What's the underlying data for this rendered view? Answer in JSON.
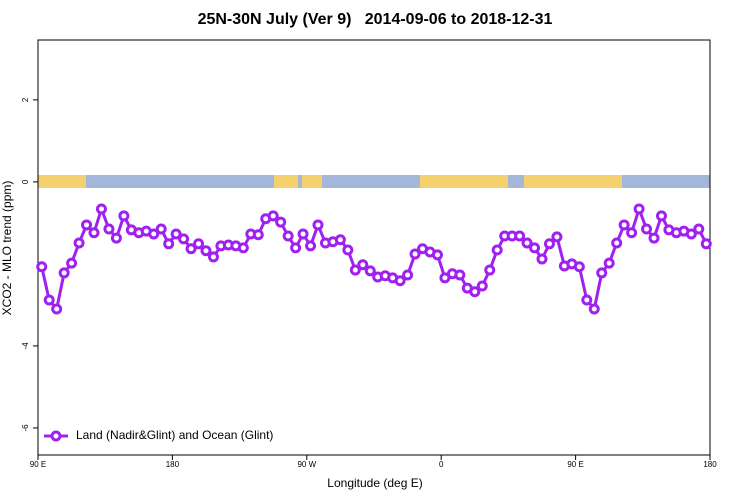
{
  "chart_data": {
    "type": "line",
    "title": "25N-30N July (Ver 9)   2014-09-06 to 2018-12-31",
    "x_label": "Longitude (deg E)",
    "y_label": "XCO2 - MLO trend (ppm)",
    "xlim": [
      90,
      540
    ],
    "ylim": [
      -6.66,
      3.46
    ],
    "xticks": [
      {
        "value": 90,
        "label": "90 E"
      },
      180,
      {
        "value": 270,
        "label": "90 W"
      },
      {
        "value": 360,
        "label": "0"
      },
      {
        "value": 450,
        "label": "90 E"
      },
      {
        "value": 540,
        "label": "180"
      }
    ],
    "yticks": [
      -6,
      -4,
      0,
      2
    ],
    "legend": "bottomleft",
    "x": [
      92.5,
      97.5,
      102.5,
      107.5,
      112.5,
      117.5,
      122.5,
      127.5,
      132.5,
      137.5,
      142.5,
      147.5,
      152.5,
      157.5,
      162.5,
      167.5,
      172.5,
      177.5,
      182.5,
      187.5,
      192.5,
      197.5,
      202.5,
      207.5,
      212.5,
      217.5,
      222.5,
      227.5,
      232.5,
      237.5,
      242.5,
      247.5,
      252.5,
      257.5,
      262.5,
      267.5,
      272.5,
      277.5,
      282.5,
      287.5,
      292.5,
      297.5,
      302.5,
      307.5,
      312.5,
      317.5,
      322.5,
      327.5,
      332.5,
      337.5,
      342.5,
      347.5,
      352.5,
      357.5,
      362.5,
      367.5,
      372.5,
      377.5,
      382.5,
      387.5,
      392.5,
      397.5,
      402.5,
      407.5,
      412.5,
      417.5,
      422.5,
      427.5,
      432.5,
      437.5,
      442.5,
      447.5,
      452.5,
      457.5,
      462.5,
      467.5,
      472.5,
      477.5,
      482.5,
      487.5,
      492.5,
      497.5,
      502.5,
      507.5,
      512.5,
      517.5,
      522.5,
      527.5,
      532.5,
      537.5
    ],
    "series": [
      {
        "name": "Land (Nadir&Glint) and Ocean (Glint)",
        "color": "#a020f0",
        "values": [
          -2.07,
          -2.88,
          -3.1,
          -2.22,
          -1.98,
          -1.49,
          -1.05,
          -1.24,
          -0.66,
          -1.15,
          -1.37,
          -0.83,
          -1.17,
          -1.24,
          -1.2,
          -1.27,
          -1.15,
          -1.51,
          -1.27,
          -1.39,
          -1.63,
          -1.51,
          -1.68,
          -1.83,
          -1.56,
          -1.54,
          -1.56,
          -1.61,
          -1.27,
          -1.29,
          -0.9,
          -0.83,
          -0.98,
          -1.32,
          -1.61,
          -1.27,
          -1.56,
          -1.05,
          -1.49,
          -1.46,
          -1.41,
          -1.66,
          -2.15,
          -2.02,
          -2.17,
          -2.32,
          -2.29,
          -2.34,
          -2.41,
          -2.27,
          -1.76,
          -1.63,
          -1.71,
          -1.78,
          -2.34,
          -2.24,
          -2.27,
          -2.59,
          -2.68,
          -2.54,
          -2.15,
          -1.66,
          -1.32,
          -1.32,
          -1.32,
          -1.49,
          -1.61,
          -1.88,
          -1.51,
          -1.34,
          -2.05,
          -2.0,
          -2.07,
          -2.88,
          -3.1,
          -2.22,
          -1.98,
          -1.49,
          -1.05,
          -1.24,
          -0.66,
          -1.15,
          -1.37,
          -0.83,
          -1.17,
          -1.24,
          -1.2,
          -1.27,
          -1.15,
          -1.51
        ]
      }
    ]
  }
}
